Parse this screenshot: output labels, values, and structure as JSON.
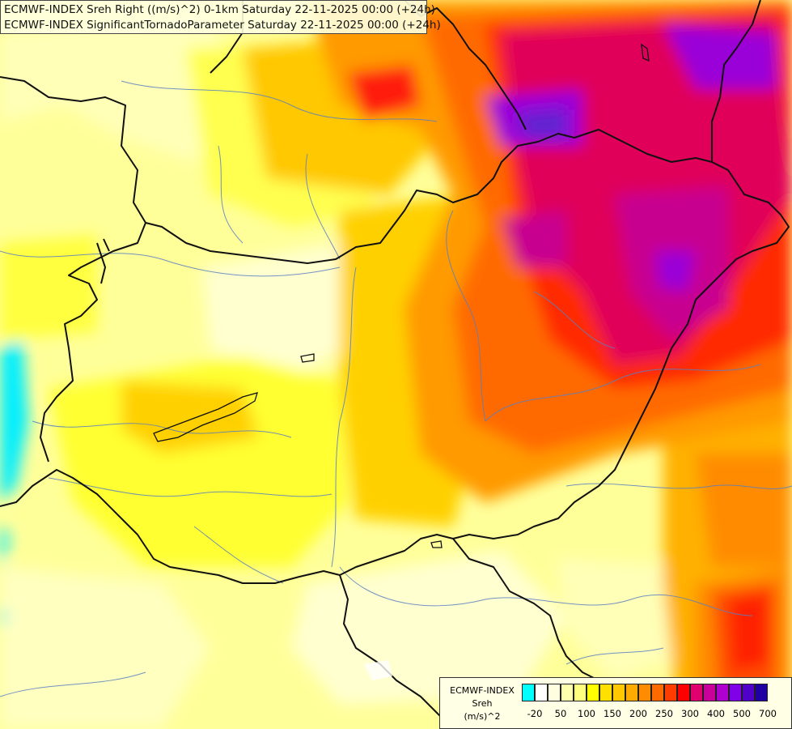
{
  "title": {
    "line1": "ECMWF-INDEX Sreh Right ((m/s)^2) 0-1km Saturday 22-11-2025 00:00 (+24h)",
    "line2": "ECMWF-INDEX SignificantTornadoParameter Saturday 22-11-2025 00:00 (+24h)"
  },
  "legend": {
    "line1": "ECMWF-INDEX",
    "line2": "Sreh",
    "line3": "(m/s)^2",
    "swatch_colors": [
      "#00ffff",
      "#ffffff",
      "#ffffe0",
      "#ffffb0",
      "#ffff80",
      "#ffff00",
      "#ffe000",
      "#ffc800",
      "#ffaa00",
      "#ff8c00",
      "#ff6a00",
      "#ff3c00",
      "#ff0000",
      "#e0006e",
      "#c8009c",
      "#b000d0",
      "#8000e8",
      "#5000c8",
      "#2000a0"
    ],
    "tick_labels": [
      "-20",
      "50",
      "100",
      "150",
      "200",
      "250",
      "300",
      "400",
      "500",
      "700"
    ]
  }
}
